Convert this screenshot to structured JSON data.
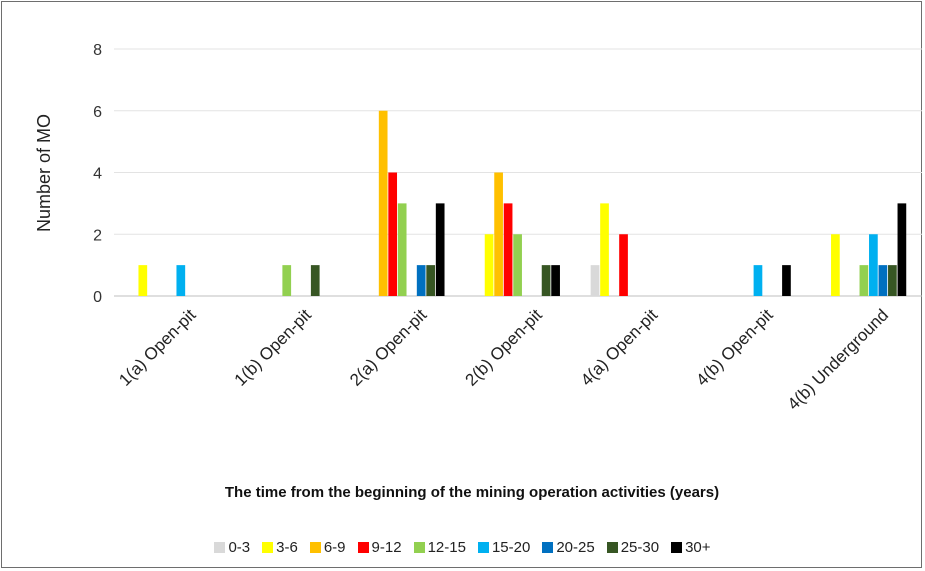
{
  "chart_data": {
    "type": "bar",
    "title": "",
    "xlabel": "The time from the beginning of the mining operation activities (years)",
    "ylabel": "Number of MO",
    "ylim": [
      0,
      8
    ],
    "yticks": [
      0,
      2,
      4,
      6,
      8
    ],
    "grid": true,
    "legend_position": "bottom",
    "categories": [
      "1(a) Open-pit",
      "1(b) Open-pit",
      "2(a) Open-pit",
      "2(b) Open-pit",
      "4(a) Open-pit",
      "4(b) Open-pit",
      "4(b) Underground"
    ],
    "series": [
      {
        "name": "0-3",
        "color": "#d9d9d9",
        "values": [
          0,
          0,
          0,
          0,
          1,
          0,
          0
        ]
      },
      {
        "name": "3-6",
        "color": "#ffff00",
        "values": [
          1,
          0,
          0,
          2,
          3,
          0,
          2
        ]
      },
      {
        "name": "6-9",
        "color": "#ffc000",
        "values": [
          0,
          0,
          6,
          4,
          0,
          0,
          0
        ]
      },
      {
        "name": "9-12",
        "color": "#ff0000",
        "values": [
          0,
          0,
          4,
          3,
          2,
          0,
          0
        ]
      },
      {
        "name": "12-15",
        "color": "#92d050",
        "values": [
          0,
          1,
          3,
          2,
          0,
          0,
          1
        ]
      },
      {
        "name": "15-20",
        "color": "#00b0f0",
        "values": [
          1,
          0,
          0,
          0,
          0,
          1,
          2
        ]
      },
      {
        "name": "20-25",
        "color": "#0070c0",
        "values": [
          0,
          0,
          1,
          0,
          0,
          0,
          1
        ]
      },
      {
        "name": "25-30",
        "color": "#375623",
        "values": [
          0,
          1,
          1,
          1,
          0,
          0,
          1
        ]
      },
      {
        "name": "30+",
        "color": "#000000",
        "values": [
          0,
          0,
          3,
          1,
          0,
          1,
          3
        ]
      }
    ]
  }
}
